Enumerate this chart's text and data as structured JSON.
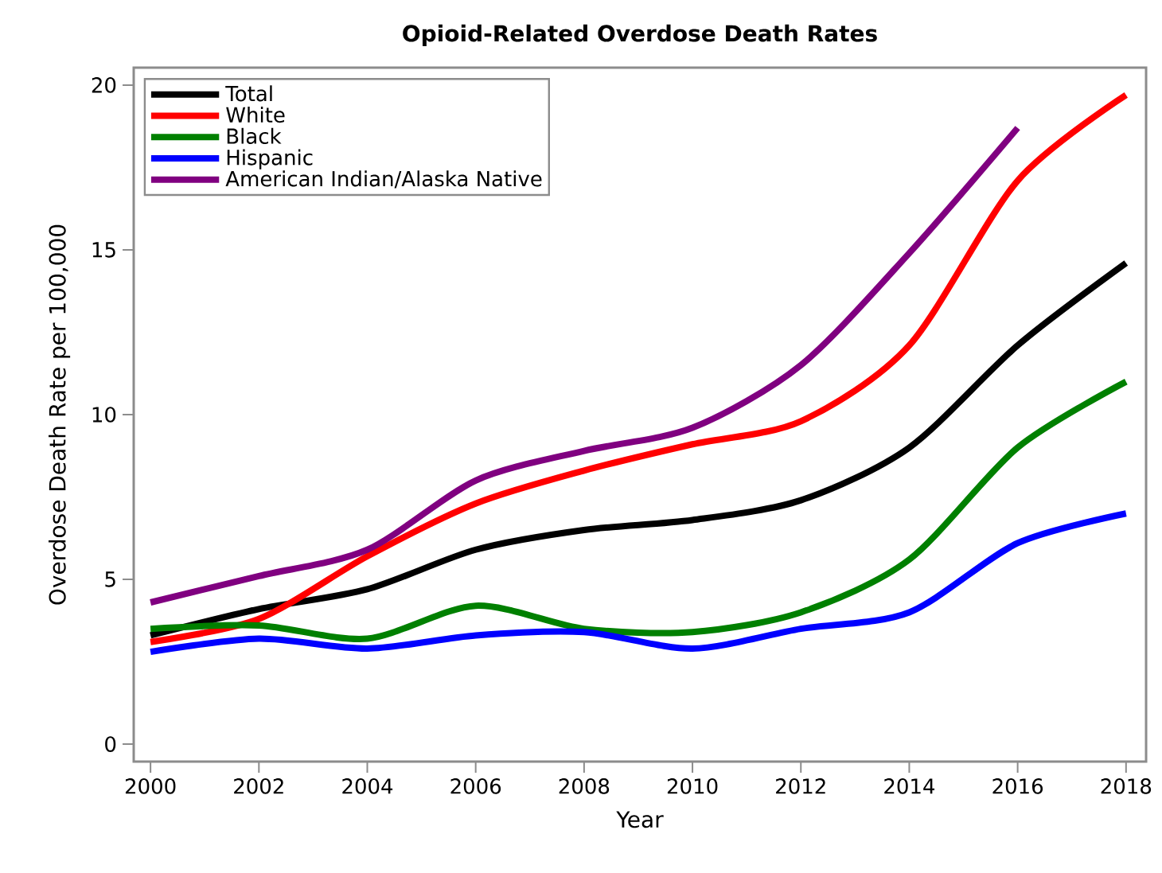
{
  "chart_data": {
    "type": "line",
    "title": "Opioid-Related Overdose Death Rates",
    "xlabel": "Year",
    "ylabel": "Overdose Death Rate per 100,000",
    "x": [
      2000,
      2002,
      2004,
      2006,
      2008,
      2010,
      2012,
      2014,
      2016,
      2018
    ],
    "series": [
      {
        "name": "Total",
        "color": "#000000",
        "values": [
          3.3,
          4.1,
          4.7,
          5.9,
          6.5,
          6.8,
          7.4,
          9.0,
          12.1,
          14.6
        ]
      },
      {
        "name": "White",
        "color": "#ff0000",
        "values": [
          3.1,
          3.8,
          5.7,
          7.3,
          8.3,
          9.1,
          9.8,
          12.1,
          17.1,
          19.7
        ]
      },
      {
        "name": "Black",
        "color": "#008000",
        "values": [
          3.5,
          3.6,
          3.2,
          4.2,
          3.5,
          3.4,
          4.0,
          5.6,
          9.0,
          11.0
        ]
      },
      {
        "name": "Hispanic",
        "color": "#0000ff",
        "values": [
          2.8,
          3.2,
          2.9,
          3.3,
          3.4,
          2.9,
          3.5,
          4.0,
          6.1,
          7.0
        ]
      },
      {
        "name": "American Indian/Alaska Native",
        "color": "#800080",
        "values": [
          4.3,
          5.1,
          5.9,
          8.0,
          8.9,
          9.6,
          11.5,
          14.9,
          18.7,
          null
        ]
      }
    ],
    "xlim": [
      1999.69,
      2018.37
    ],
    "ylim": [
      -0.53,
      20.53
    ],
    "xticks": [
      2000,
      2002,
      2004,
      2006,
      2008,
      2010,
      2012,
      2014,
      2016,
      2018
    ],
    "yticks": [
      0,
      5,
      10,
      15,
      20
    ],
    "grid": false,
    "legend": "top left",
    "marker": "none",
    "line_style": "solid"
  }
}
